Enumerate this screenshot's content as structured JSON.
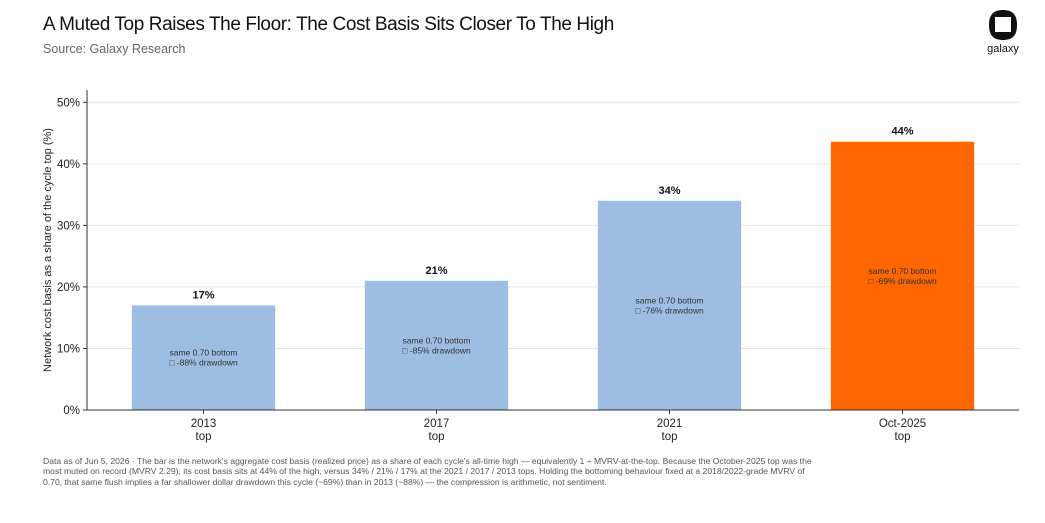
{
  "header": {
    "title": "A Muted Top Raises The Floor: The Cost Basis Sits Closer To The High",
    "subtitle": "Source: Galaxy Research"
  },
  "logo": {
    "icon": "galaxy-logo-icon",
    "text": "galaxy"
  },
  "colors": {
    "bar": "#9dbde2",
    "highlight": "#ff6600",
    "grid": "#e6e6e6",
    "axis": "#333333"
  },
  "chart_data": {
    "type": "bar",
    "categories": [
      [
        "2013",
        "top"
      ],
      [
        "2017",
        "top"
      ],
      [
        "2021",
        "top"
      ],
      [
        "Oct-2025",
        "top"
      ]
    ],
    "values": [
      17,
      21,
      34,
      43.6
    ],
    "value_labels": [
      "17%",
      "21%",
      "34%",
      "44%"
    ],
    "annotations": [
      [
        "same 0.70 bottom",
        "□ -88% drawdown"
      ],
      [
        "same 0.70 bottom",
        "□ -85% drawdown"
      ],
      [
        "same 0.70 bottom",
        "□ -76% drawdown"
      ],
      [
        "same 0.70 bottom",
        "□ -69% drawdown"
      ]
    ],
    "highlight_index": 3,
    "ylabel": "Network cost basis as a share of the cycle top (%)",
    "ylim": [
      0,
      52
    ],
    "yticks": [
      0,
      10,
      20,
      30,
      40,
      50
    ],
    "ytick_labels": [
      "0%",
      "10%",
      "20%",
      "30%",
      "40%",
      "50%"
    ],
    "grid": true
  },
  "footnote": "Data as of Jun 5, 2026 · The bar is the network's aggregate cost basis (realized price) as a share of each cycle's all-time high — equivalently 1 ÷ MVRV-at-the-top. Because the October-2025 top was the most muted on record (MVRV 2.29), its cost basis sits at 44% of the high, versus 34% / 21% / 17% at the 2021 / 2017 / 2013 tops. Holding the bottoming behaviour fixed at a 2018/2022-grade MVRV of 0.70, that same flush implies a far shallower dollar drawdown this cycle (~69%) than in 2013 (~88%) — the compression is arithmetic, not sentiment."
}
